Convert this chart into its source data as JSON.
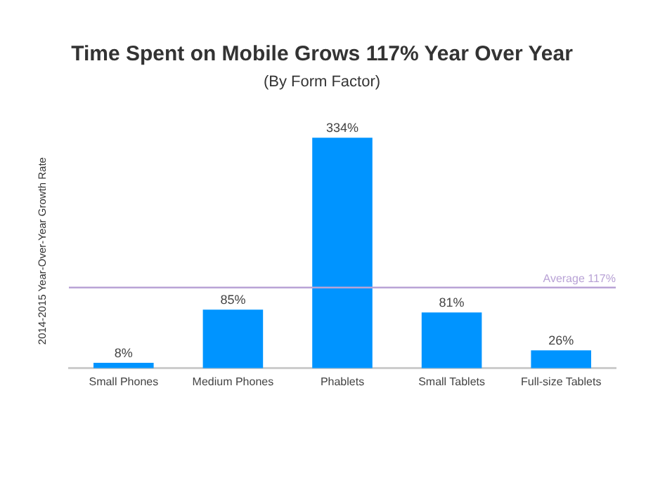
{
  "chart_data": {
    "type": "bar",
    "title": "Time Spent on Mobile Grows 117% Year Over Year",
    "subtitle": "(By Form Factor)",
    "ylabel": "2014-2015 Year-Over-Year Growth Rate",
    "categories": [
      "Small Phones",
      "Medium Phones",
      "Phablets",
      "Small Tablets",
      "Full-size Tablets"
    ],
    "values": [
      8,
      85,
      334,
      81,
      26
    ],
    "value_labels": [
      "8%",
      "85%",
      "334%",
      "81%",
      "26%"
    ],
    "color": "#0094ff",
    "ylim": [
      0,
      340
    ],
    "ref_lines": [
      {
        "axis": "y",
        "value": 117,
        "label": "Average 117%",
        "color": "#b9a3d6"
      }
    ],
    "grid": false,
    "legend": false
  }
}
